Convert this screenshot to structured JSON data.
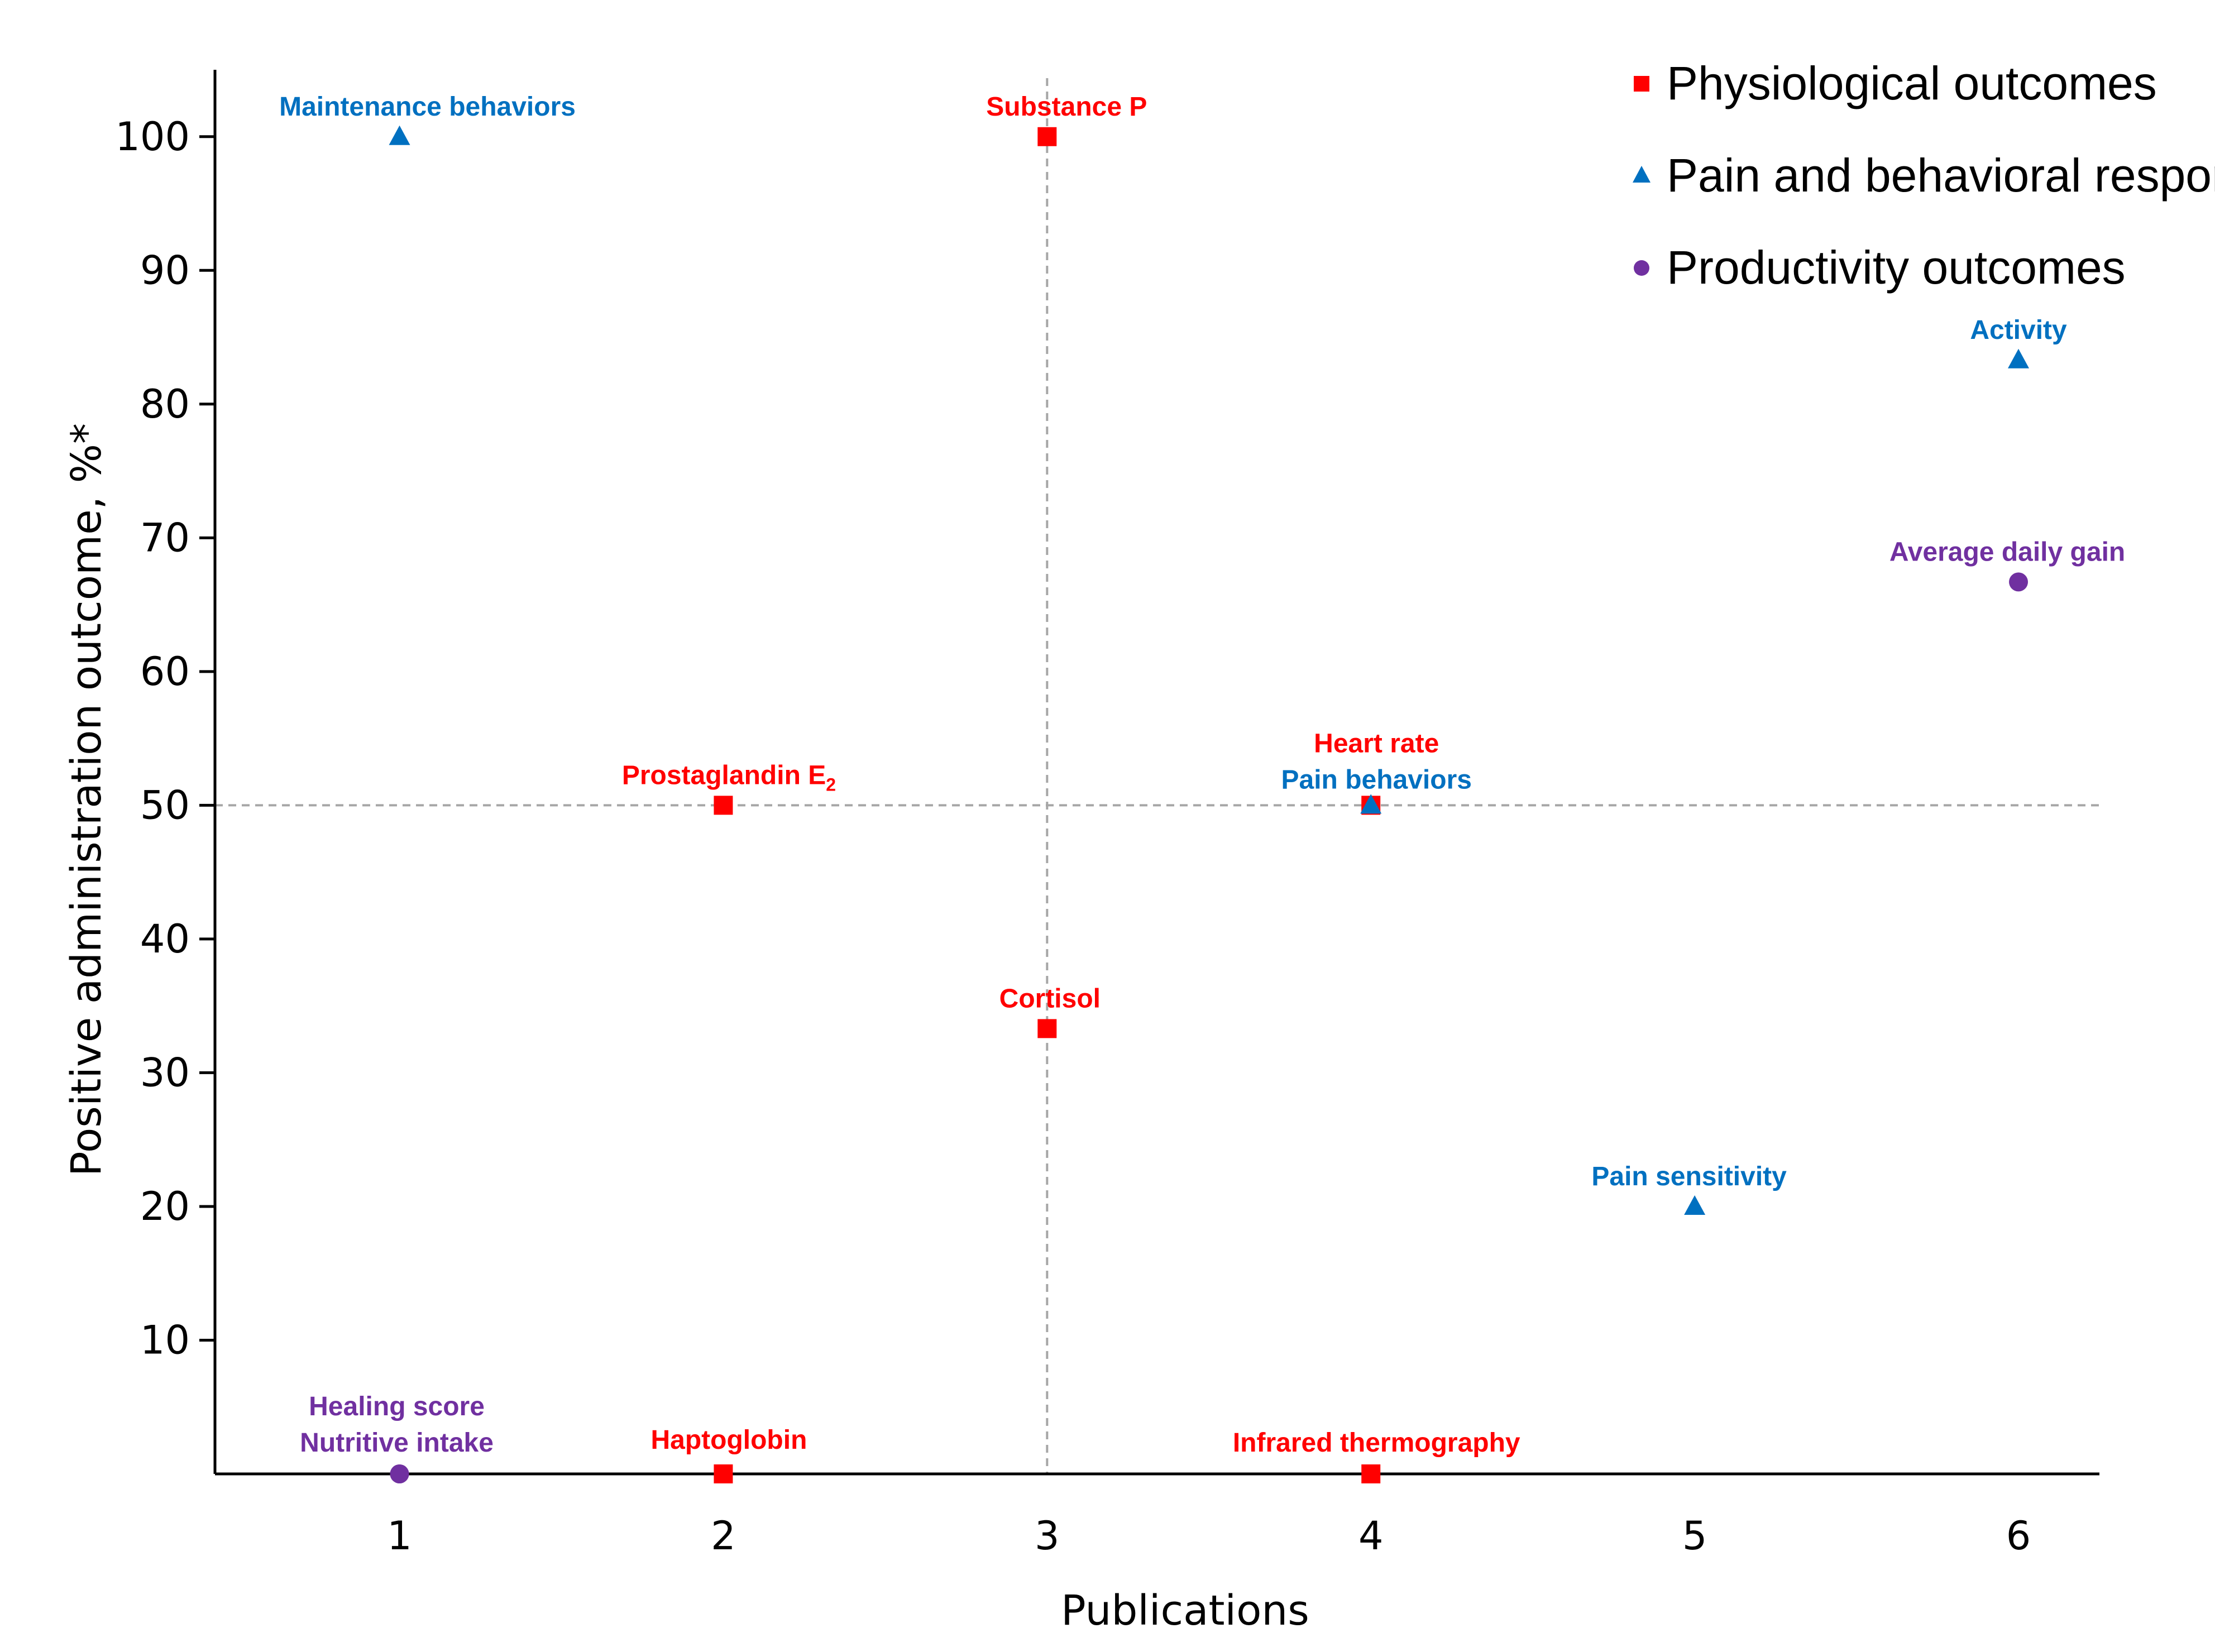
{
  "chart_data": {
    "type": "scatter",
    "xlabel": "Publications",
    "ylabel": "Positive administration outcome, %*",
    "xlim": [
      0.43,
      6.25
    ],
    "ylim": [
      0,
      105
    ],
    "x_ticks": [
      "1",
      "2",
      "3",
      "4",
      "5",
      "6"
    ],
    "y_ticks": [
      "10",
      "20",
      "30",
      "40",
      "50",
      "60",
      "70",
      "80",
      "90",
      "100"
    ],
    "reference_lines": {
      "x": 3,
      "y": 50
    },
    "legend_placement": "top-right",
    "series": [
      {
        "name": "Physiological outcomes",
        "marker": "square",
        "color": "#ff0000",
        "points": [
          {
            "label": "Substance P",
            "x": 3,
            "y": 100
          },
          {
            "label": "Prostaglandin E",
            "sub": "2",
            "x": 2,
            "y": 50
          },
          {
            "label": "Heart rate",
            "x": 4,
            "y": 50
          },
          {
            "label": "Cortisol",
            "x": 3,
            "y": 33.3
          },
          {
            "label": "Haptoglobin",
            "x": 2,
            "y": 0
          },
          {
            "label": "Infrared thermography",
            "x": 4,
            "y": 0
          }
        ]
      },
      {
        "name": "Pain and behavioral responses",
        "marker": "triangle",
        "color": "#0070c0",
        "points": [
          {
            "label": "Maintenance behaviors",
            "x": 1,
            "y": 100
          },
          {
            "label": "Activity",
            "x": 6,
            "y": 83.3
          },
          {
            "label": "Pain behaviors",
            "x": 4,
            "y": 50
          },
          {
            "label": "Pain sensitivity",
            "x": 5,
            "y": 20
          }
        ]
      },
      {
        "name": "Productivity outcomes",
        "marker": "circle",
        "color": "#7030a0",
        "points": [
          {
            "label": "Average daily gain",
            "x": 6,
            "y": 66.7
          },
          {
            "label": "Healing score",
            "x": 1,
            "y": 0
          },
          {
            "label": "Nutritive intake",
            "x": 1,
            "y": 0
          }
        ]
      }
    ]
  }
}
